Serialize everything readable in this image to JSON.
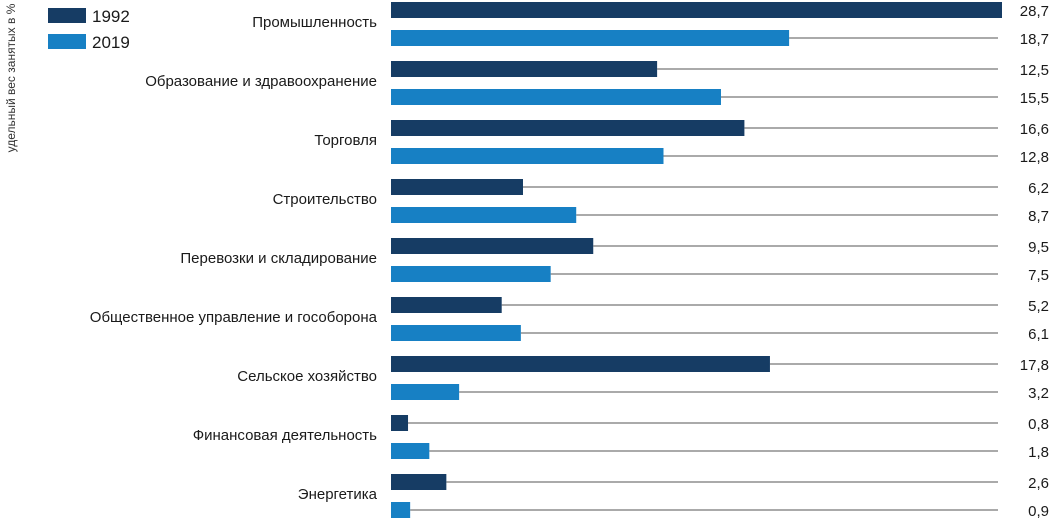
{
  "chart_data": {
    "type": "bar",
    "orientation": "horizontal",
    "ylabel": "удельный вес занятых в %",
    "categories": [
      "Промышленность",
      "Образование и здравоохранение",
      "Торговля",
      "Строительство",
      "Перевозки и складирование",
      "Общественное управление и гособорона",
      "Сельское хозяйство",
      "Финансовая деятельность",
      "Энергетика"
    ],
    "series": [
      {
        "name": "1992",
        "color": "#163c64",
        "values": [
          28.7,
          12.5,
          16.6,
          6.2,
          9.5,
          5.2,
          17.8,
          0.8,
          2.6
        ]
      },
      {
        "name": "2019",
        "color": "#1780c4",
        "values": [
          18.7,
          15.5,
          12.8,
          8.7,
          7.5,
          6.1,
          3.2,
          1.8,
          0.9
        ]
      }
    ],
    "value_labels": [
      [
        "28,7",
        "18,7"
      ],
      [
        "12,5",
        "15,5"
      ],
      [
        "16,6",
        "12,8"
      ],
      [
        "6,2",
        "8,7"
      ],
      [
        "9,5",
        "7,5"
      ],
      [
        "5,2",
        "6,1"
      ],
      [
        "17,8",
        "3,2"
      ],
      [
        "0,8",
        "1,8"
      ],
      [
        "2,6",
        "0,9"
      ]
    ],
    "xlim": [
      0,
      28.7
    ],
    "legend_position": "top-left",
    "grid": false,
    "leader_line_color": "#555555"
  }
}
